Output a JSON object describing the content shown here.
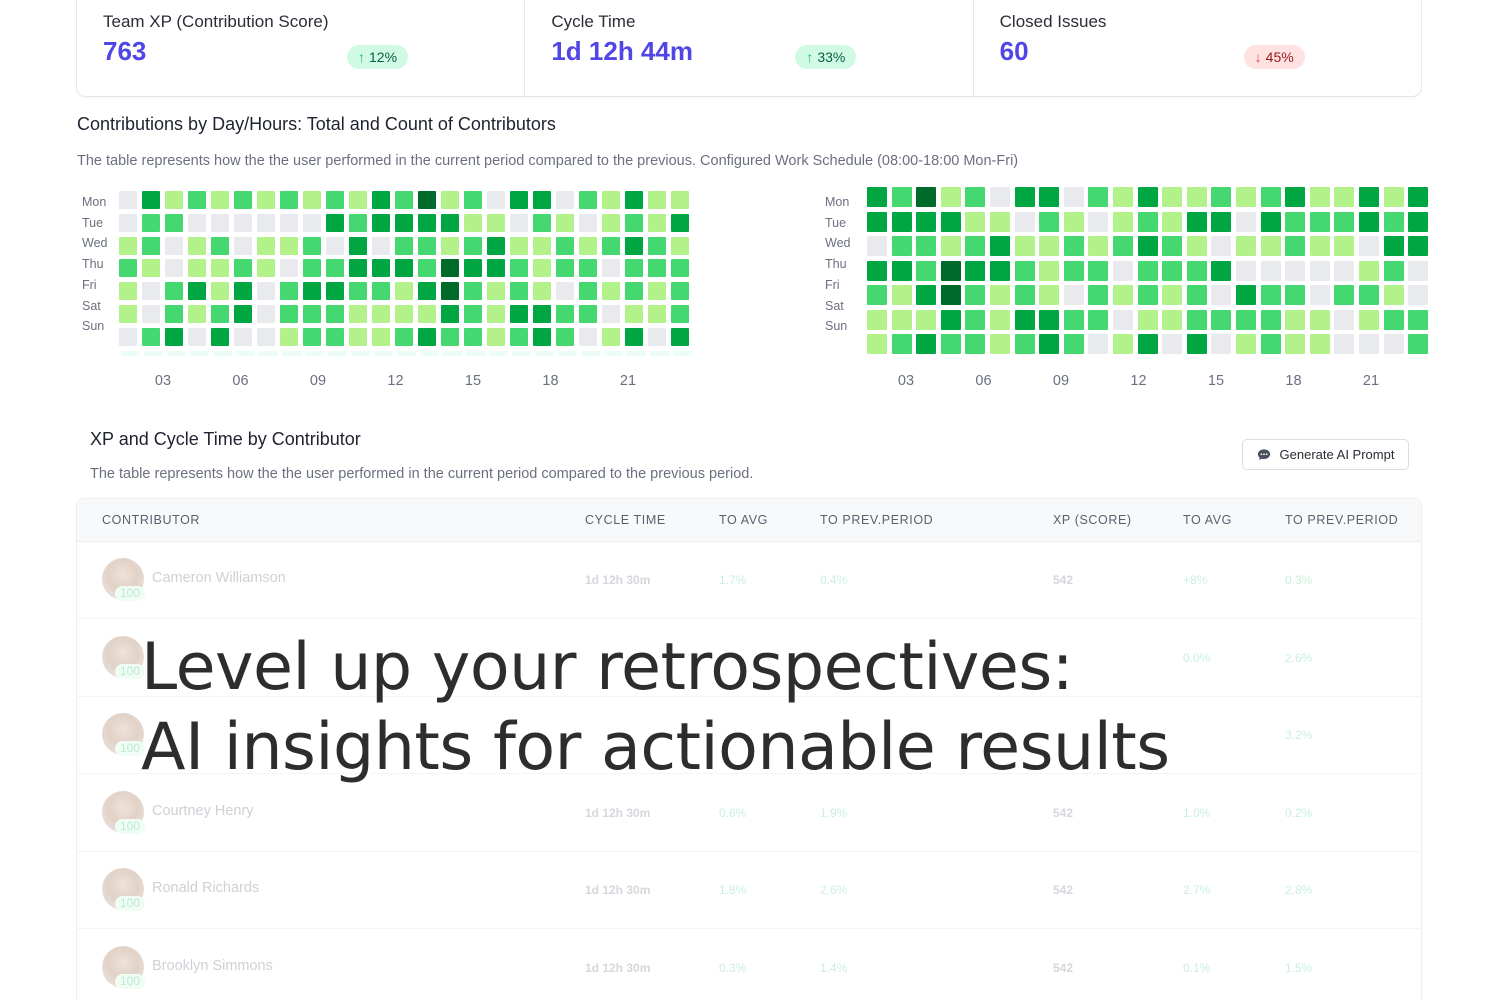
{
  "kpis": [
    {
      "label": "Team XP (Contribution Score)",
      "value": "763",
      "change": "12%",
      "direction": "up",
      "arrow": "↑"
    },
    {
      "label": "Cycle Time",
      "value": "1d 12h 44m",
      "change": "33%",
      "direction": "up",
      "arrow": "↑"
    },
    {
      "label": "Closed Issues",
      "value": "60",
      "change": "45%",
      "direction": "down",
      "arrow": "↓"
    }
  ],
  "contributions": {
    "title": "Contributions by Day/Hours: Total and Count of Contributors",
    "description": "The table represents how the the user performed in the current period compared to the previous. Configured Work Schedule (08:00-18:00 Mon-Fri)",
    "days": [
      "Mon",
      "Tue",
      "Wed",
      "Thu",
      "Fri",
      "Sat",
      "Sun"
    ],
    "x_ticks": [
      "03",
      "06",
      "09",
      "12",
      "15",
      "18",
      "21"
    ]
  },
  "chart_data": [
    {
      "type": "heatmap",
      "title": "Contributions by Day/Hours (current period)",
      "y_labels": [
        "Mon",
        "Tue",
        "Wed",
        "Thu",
        "Fri",
        "Sat",
        "Sun"
      ],
      "x_tick_labels": [
        "03",
        "06",
        "09",
        "12",
        "15",
        "18",
        "21"
      ],
      "scale": "0=none,1=low,2=medium,3=high,4=very high",
      "values": [
        [
          0,
          3,
          1,
          2,
          1,
          2,
          1,
          2,
          1,
          2,
          1,
          3,
          2,
          4,
          1,
          2,
          0,
          3,
          3,
          0,
          2,
          1,
          3,
          1,
          1
        ],
        [
          0,
          2,
          2,
          0,
          0,
          0,
          0,
          0,
          0,
          3,
          2,
          3,
          3,
          3,
          3,
          1,
          1,
          0,
          2,
          1,
          0,
          1,
          2,
          1,
          3
        ],
        [
          1,
          2,
          0,
          1,
          2,
          0,
          1,
          1,
          2,
          0,
          3,
          0,
          2,
          2,
          1,
          2,
          3,
          1,
          1,
          2,
          1,
          2,
          3,
          2,
          1
        ],
        [
          2,
          1,
          0,
          1,
          1,
          2,
          1,
          0,
          2,
          2,
          3,
          3,
          3,
          2,
          4,
          3,
          3,
          2,
          1,
          2,
          2,
          0,
          2,
          2,
          2
        ],
        [
          1,
          0,
          2,
          3,
          1,
          3,
          0,
          2,
          3,
          3,
          2,
          2,
          1,
          3,
          4,
          2,
          1,
          2,
          1,
          0,
          2,
          1,
          2,
          1,
          2
        ],
        [
          1,
          0,
          2,
          1,
          2,
          3,
          0,
          2,
          2,
          2,
          1,
          1,
          1,
          1,
          3,
          2,
          1,
          3,
          3,
          2,
          2,
          0,
          1,
          1,
          2
        ],
        [
          0,
          2,
          3,
          0,
          3,
          0,
          0,
          1,
          2,
          2,
          1,
          1,
          2,
          3,
          2,
          2,
          1,
          2,
          3,
          2,
          0,
          1,
          3,
          0,
          3
        ]
      ]
    },
    {
      "type": "heatmap",
      "title": "Contributions by Day/Hours (count of contributors)",
      "y_labels": [
        "Mon",
        "Tue",
        "Wed",
        "Thu",
        "Fri",
        "Sat",
        "Sun"
      ],
      "x_tick_labels": [
        "03",
        "06",
        "09",
        "12",
        "15",
        "18",
        "21"
      ],
      "scale": "0=none,1=low,2=medium,3=high,4=very high",
      "values": [
        [
          3,
          2,
          4,
          1,
          2,
          0,
          3,
          3,
          0,
          2,
          1,
          3,
          1,
          1,
          2,
          1,
          2,
          3,
          1,
          1,
          3,
          1,
          3
        ],
        [
          3,
          3,
          3,
          3,
          1,
          1,
          0,
          2,
          1,
          0,
          1,
          2,
          1,
          3,
          3,
          0,
          3,
          2,
          2,
          2,
          3,
          2,
          3
        ],
        [
          0,
          2,
          2,
          1,
          2,
          3,
          1,
          1,
          2,
          1,
          2,
          3,
          2,
          1,
          0,
          1,
          1,
          2,
          1,
          1,
          0,
          3,
          3
        ],
        [
          3,
          3,
          2,
          4,
          3,
          3,
          2,
          1,
          2,
          2,
          0,
          2,
          2,
          2,
          3,
          0,
          0,
          0,
          0,
          0,
          1,
          2,
          0
        ],
        [
          2,
          1,
          3,
          4,
          2,
          1,
          2,
          1,
          0,
          2,
          1,
          2,
          1,
          2,
          0,
          3,
          2,
          2,
          0,
          2,
          2,
          1,
          0
        ],
        [
          1,
          1,
          1,
          3,
          2,
          1,
          3,
          3,
          2,
          2,
          0,
          1,
          1,
          2,
          2,
          2,
          2,
          1,
          1,
          0,
          1,
          2,
          2
        ],
        [
          1,
          2,
          3,
          2,
          2,
          1,
          2,
          3,
          2,
          0,
          1,
          3,
          0,
          3,
          0,
          1,
          2,
          1,
          1,
          0,
          0,
          0,
          2
        ]
      ]
    }
  ],
  "xp_section": {
    "title": "XP and Cycle Time by Contributor",
    "description": "The table represents how the the user performed in the current period compared to the previous period.",
    "ai_button_label": "Generate AI Prompt",
    "columns": [
      "CONTRIBUTOR",
      "CYCLE TIME",
      "TO AVG",
      "TO PREV.PERIOD",
      "XP (SCORE)",
      "TO AVG",
      "TO PREV.PERIOD"
    ],
    "rows": [
      {
        "name": "Cameron Williamson",
        "badge": "100",
        "cycle_time": "1d 12h 30m",
        "ct_to_avg": "1.7%",
        "ct_to_prev": "0.4%",
        "xp": "542",
        "xp_to_avg": "+8%",
        "xp_to_prev": "0.3%"
      },
      {
        "name": "",
        "badge": "100",
        "cycle_time": "",
        "ct_to_avg": "",
        "ct_to_prev": "",
        "xp": "",
        "xp_to_avg": "0.0%",
        "xp_to_prev": "2.6%"
      },
      {
        "name": "",
        "badge": "100",
        "cycle_time": "",
        "ct_to_avg": "",
        "ct_to_prev": "",
        "xp": "",
        "xp_to_avg": "",
        "xp_to_prev": "3.2%"
      },
      {
        "name": "Courtney Henry",
        "badge": "100",
        "cycle_time": "1d 12h 30m",
        "ct_to_avg": "0.6%",
        "ct_to_prev": "1.9%",
        "xp": "542",
        "xp_to_avg": "1.0%",
        "xp_to_prev": "0.2%"
      },
      {
        "name": "Ronald Richards",
        "badge": "100",
        "cycle_time": "1d 12h 30m",
        "ct_to_avg": "1.8%",
        "ct_to_prev": "2.6%",
        "xp": "542",
        "xp_to_avg": "2.7%",
        "xp_to_prev": "2.8%"
      },
      {
        "name": "Brooklyn Simmons",
        "badge": "100",
        "cycle_time": "1d 12h 30m",
        "ct_to_avg": "0.3%",
        "ct_to_prev": "1.4%",
        "xp": "542",
        "xp_to_avg": "0.1%",
        "xp_to_prev": "1.5%"
      }
    ]
  },
  "overlay": {
    "line1": "Level up your retrospectives:",
    "line2": "AI insights for actionable results"
  },
  "colors": {
    "accent": "#4f46e5",
    "heat_levels": [
      "#e9eaee",
      "#b3f18a",
      "#45d870",
      "#00a642",
      "#006a2b"
    ],
    "up": "#10b981",
    "down": "#ef4444"
  }
}
